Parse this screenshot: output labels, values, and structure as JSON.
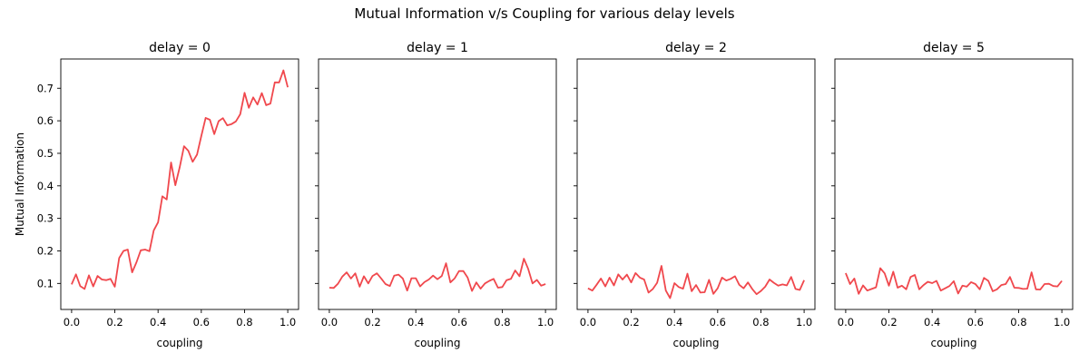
{
  "figure": {
    "suptitle": "Mutual Information v/s Coupling for various delay levels",
    "ylabel": "Mutual Information",
    "line_color": "#f0484d"
  },
  "chart_data": [
    {
      "type": "line",
      "title": "delay = 0",
      "xlabel": "coupling",
      "ylabel": "Mutual Information",
      "xlim": [
        -0.05,
        1.05
      ],
      "ylim": [
        0.02,
        0.79
      ],
      "xticks": [
        "0.0",
        "0.2",
        "0.4",
        "0.6",
        "0.8",
        "1.0"
      ],
      "yticks": [
        "0.1",
        "0.2",
        "0.3",
        "0.4",
        "0.5",
        "0.6",
        "0.7"
      ],
      "x": [
        0.0,
        0.02,
        0.04,
        0.06,
        0.08,
        0.1,
        0.12,
        0.14,
        0.16,
        0.18,
        0.2,
        0.22,
        0.24,
        0.26,
        0.28,
        0.3,
        0.32,
        0.34,
        0.36,
        0.38,
        0.4,
        0.42,
        0.44,
        0.46,
        0.48,
        0.5,
        0.52,
        0.54,
        0.56,
        0.58,
        0.6,
        0.62,
        0.64,
        0.66,
        0.68,
        0.7,
        0.72,
        0.74,
        0.76,
        0.78,
        0.8,
        0.82,
        0.84,
        0.86,
        0.88,
        0.9,
        0.92,
        0.94,
        0.96,
        0.98,
        1.0
      ],
      "y": [
        0.097,
        0.128,
        0.092,
        0.083,
        0.125,
        0.091,
        0.123,
        0.112,
        0.11,
        0.114,
        0.09,
        0.178,
        0.2,
        0.204,
        0.134,
        0.165,
        0.202,
        0.204,
        0.199,
        0.263,
        0.288,
        0.368,
        0.358,
        0.472,
        0.402,
        0.457,
        0.522,
        0.508,
        0.474,
        0.496,
        0.553,
        0.609,
        0.603,
        0.559,
        0.599,
        0.608,
        0.586,
        0.59,
        0.598,
        0.62,
        0.686,
        0.64,
        0.672,
        0.65,
        0.685,
        0.648,
        0.653,
        0.718,
        0.718,
        0.755,
        0.703
      ]
    },
    {
      "type": "line",
      "title": "delay = 1",
      "xlabel": "coupling",
      "xlim": [
        -0.05,
        1.05
      ],
      "ylim": [
        0.02,
        0.79
      ],
      "xticks": [
        "0.0",
        "0.2",
        "0.4",
        "0.6",
        "0.8",
        "1.0"
      ],
      "x": [
        0.0,
        0.02,
        0.04,
        0.06,
        0.08,
        0.1,
        0.12,
        0.14,
        0.16,
        0.18,
        0.2,
        0.22,
        0.24,
        0.26,
        0.28,
        0.3,
        0.32,
        0.34,
        0.36,
        0.38,
        0.4,
        0.42,
        0.44,
        0.46,
        0.48,
        0.5,
        0.52,
        0.54,
        0.56,
        0.58,
        0.6,
        0.62,
        0.64,
        0.66,
        0.68,
        0.7,
        0.72,
        0.74,
        0.76,
        0.78,
        0.8,
        0.82,
        0.84,
        0.86,
        0.88,
        0.9,
        0.92,
        0.94,
        0.96,
        0.98,
        1.0
      ],
      "y": [
        0.087,
        0.086,
        0.099,
        0.121,
        0.134,
        0.115,
        0.131,
        0.09,
        0.122,
        0.1,
        0.123,
        0.131,
        0.115,
        0.098,
        0.092,
        0.124,
        0.127,
        0.115,
        0.078,
        0.116,
        0.116,
        0.091,
        0.104,
        0.112,
        0.124,
        0.113,
        0.123,
        0.162,
        0.103,
        0.116,
        0.138,
        0.138,
        0.118,
        0.077,
        0.103,
        0.084,
        0.1,
        0.108,
        0.114,
        0.087,
        0.089,
        0.11,
        0.114,
        0.14,
        0.122,
        0.176,
        0.145,
        0.1,
        0.111,
        0.093,
        0.098
      ]
    },
    {
      "type": "line",
      "title": "delay = 2",
      "xlabel": "coupling",
      "xlim": [
        -0.05,
        1.05
      ],
      "ylim": [
        0.02,
        0.79
      ],
      "xticks": [
        "0.0",
        "0.2",
        "0.4",
        "0.6",
        "0.8",
        "1.0"
      ],
      "x": [
        0.0,
        0.02,
        0.04,
        0.06,
        0.08,
        0.1,
        0.12,
        0.14,
        0.16,
        0.18,
        0.2,
        0.22,
        0.24,
        0.26,
        0.28,
        0.3,
        0.32,
        0.34,
        0.36,
        0.38,
        0.4,
        0.42,
        0.44,
        0.46,
        0.48,
        0.5,
        0.52,
        0.54,
        0.56,
        0.58,
        0.6,
        0.62,
        0.64,
        0.66,
        0.68,
        0.7,
        0.72,
        0.74,
        0.76,
        0.78,
        0.8,
        0.82,
        0.84,
        0.86,
        0.88,
        0.9,
        0.92,
        0.94,
        0.96,
        0.98,
        1.0
      ],
      "y": [
        0.085,
        0.078,
        0.096,
        0.115,
        0.091,
        0.118,
        0.094,
        0.128,
        0.112,
        0.127,
        0.103,
        0.132,
        0.118,
        0.112,
        0.072,
        0.083,
        0.102,
        0.154,
        0.078,
        0.055,
        0.101,
        0.089,
        0.084,
        0.13,
        0.076,
        0.095,
        0.072,
        0.073,
        0.111,
        0.068,
        0.085,
        0.118,
        0.109,
        0.114,
        0.122,
        0.096,
        0.085,
        0.103,
        0.083,
        0.067,
        0.077,
        0.09,
        0.112,
        0.102,
        0.093,
        0.097,
        0.094,
        0.12,
        0.083,
        0.08,
        0.11
      ]
    },
    {
      "type": "line",
      "title": "delay = 5",
      "xlabel": "coupling",
      "xlim": [
        -0.05,
        1.05
      ],
      "ylim": [
        0.02,
        0.79
      ],
      "xticks": [
        "0.0",
        "0.2",
        "0.4",
        "0.6",
        "0.8",
        "1.0"
      ],
      "x": [
        0.0,
        0.02,
        0.04,
        0.06,
        0.08,
        0.1,
        0.12,
        0.14,
        0.16,
        0.18,
        0.2,
        0.22,
        0.24,
        0.26,
        0.28,
        0.3,
        0.32,
        0.34,
        0.36,
        0.38,
        0.4,
        0.42,
        0.44,
        0.46,
        0.48,
        0.5,
        0.52,
        0.54,
        0.56,
        0.58,
        0.6,
        0.62,
        0.64,
        0.66,
        0.68,
        0.7,
        0.72,
        0.74,
        0.76,
        0.78,
        0.8,
        0.82,
        0.84,
        0.86,
        0.88,
        0.9,
        0.92,
        0.94,
        0.96,
        0.98,
        1.0
      ],
      "y": [
        0.132,
        0.098,
        0.115,
        0.068,
        0.094,
        0.078,
        0.083,
        0.088,
        0.147,
        0.131,
        0.093,
        0.136,
        0.087,
        0.093,
        0.082,
        0.12,
        0.126,
        0.082,
        0.095,
        0.105,
        0.101,
        0.108,
        0.078,
        0.085,
        0.092,
        0.107,
        0.069,
        0.093,
        0.09,
        0.104,
        0.098,
        0.082,
        0.117,
        0.108,
        0.076,
        0.082,
        0.095,
        0.098,
        0.12,
        0.087,
        0.086,
        0.083,
        0.084,
        0.134,
        0.082,
        0.081,
        0.098,
        0.099,
        0.092,
        0.091,
        0.108
      ]
    }
  ]
}
